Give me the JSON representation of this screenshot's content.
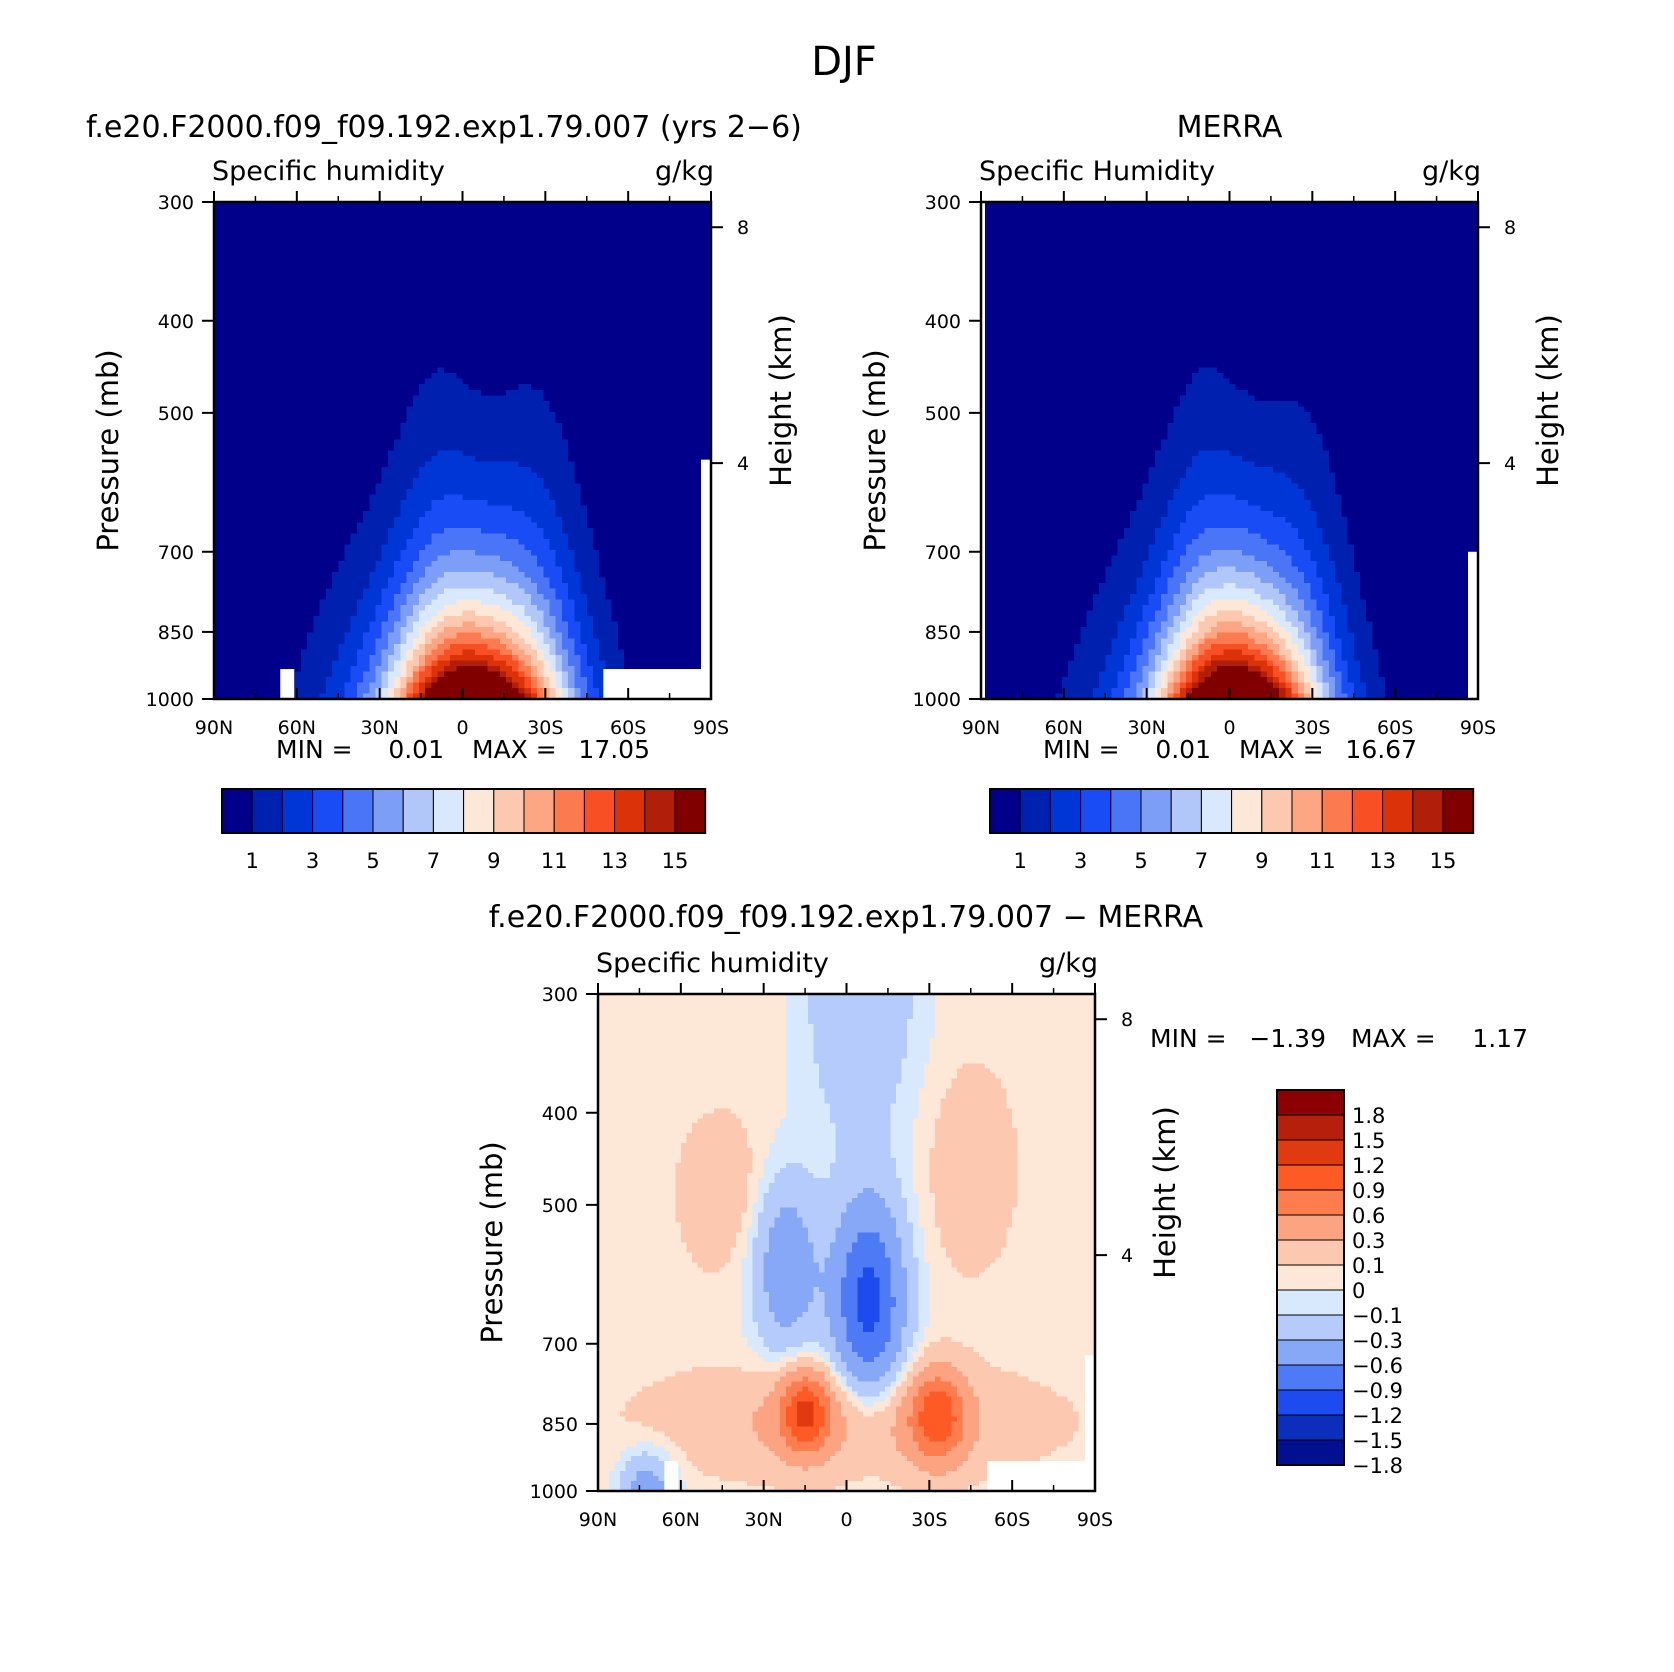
{
  "figure_title": "DJF",
  "panels": [
    {
      "model_title": "f.e20.F2000.f09_f09.192.exp1.79.007 (yrs 2−6)",
      "variable": "Specific humidity",
      "units": "g/kg",
      "ylabel": "Pressure (mb)",
      "y2label": "Height (km)",
      "min_label": "MIN =",
      "min_value": "0.01",
      "max_label": "MAX =",
      "max_value": "17.05"
    },
    {
      "model_title": "MERRA",
      "variable": "Specific Humidity",
      "units": "g/kg",
      "ylabel": "Pressure (mb)",
      "y2label": "Height (km)",
      "min_label": "MIN =",
      "min_value": "0.01",
      "max_label": "MAX =",
      "max_value": "16.67"
    },
    {
      "model_title": "f.e20.F2000.f09_f09.192.exp1.79.007 − MERRA",
      "variable": "Specific humidity",
      "units": "g/kg",
      "ylabel": "Pressure (mb)",
      "y2label": "Height (km)",
      "min_label": "MIN =",
      "min_value": "−1.39",
      "max_label": "MAX =",
      "max_value": "1.17"
    }
  ],
  "chart_data": [
    {
      "type": "heatmap",
      "title": "f.e20.F2000.f09_f09.192.exp1.79.007 (yrs 2−6)",
      "subtitle": "Specific humidity",
      "units": "g/kg",
      "xlabel": "",
      "ylabel": "Pressure (mb)",
      "y2label": "Height (km)",
      "x_ticks": [
        "90N",
        "60N",
        "30N",
        "0",
        "30S",
        "60S",
        "90S"
      ],
      "y_ticks": [
        300,
        400,
        500,
        700,
        850,
        1000
      ],
      "y2_ticks": [
        8,
        4
      ],
      "colorbar_levels": [
        1,
        2,
        3,
        4,
        5,
        6,
        7,
        8,
        9,
        10,
        11,
        12,
        13,
        14,
        15
      ],
      "colorbar_labels": [
        "1",
        "3",
        "5",
        "7",
        "9",
        "11",
        "13",
        "15"
      ],
      "colors": [
        "#00008b",
        "#0020b0",
        "#0035d6",
        "#1a4cf5",
        "#4a75f7",
        "#7d9ef7",
        "#b1c6f9",
        "#d9e8fd",
        "#fde8d8",
        "#fcc8b0",
        "#fca683",
        "#fb7a4f",
        "#f84f25",
        "#dc3209",
        "#b11f0a",
        "#800000"
      ],
      "min": 0.01,
      "max": 17.05
    },
    {
      "type": "heatmap",
      "title": "MERRA",
      "subtitle": "Specific Humidity",
      "units": "g/kg",
      "xlabel": "",
      "ylabel": "Pressure (mb)",
      "y2label": "Height (km)",
      "x_ticks": [
        "90N",
        "60N",
        "30N",
        "0",
        "30S",
        "60S",
        "90S"
      ],
      "y_ticks": [
        300,
        400,
        500,
        700,
        850,
        1000
      ],
      "y2_ticks": [
        8,
        4
      ],
      "colorbar_levels": [
        1,
        2,
        3,
        4,
        5,
        6,
        7,
        8,
        9,
        10,
        11,
        12,
        13,
        14,
        15
      ],
      "colorbar_labels": [
        "1",
        "3",
        "5",
        "7",
        "9",
        "11",
        "13",
        "15"
      ],
      "min": 0.01,
      "max": 16.67
    },
    {
      "type": "heatmap",
      "title": "f.e20.F2000.f09_f09.192.exp1.79.007 − MERRA",
      "subtitle": "Specific humidity",
      "units": "g/kg",
      "xlabel": "",
      "ylabel": "Pressure (mb)",
      "y2label": "Height (km)",
      "x_ticks": [
        "90N",
        "60N",
        "30N",
        "0",
        "30S",
        "60S",
        "90S"
      ],
      "y_ticks": [
        300,
        400,
        500,
        700,
        850,
        1000
      ],
      "y2_ticks": [
        8,
        4
      ],
      "colorbar_labels": [
        "1.8",
        "1.5",
        "1.2",
        "0.9",
        "0.6",
        "0.3",
        "0.1",
        "0",
        "−0.1",
        "−0.3",
        "−0.6",
        "−0.9",
        "−1.2",
        "−1.5",
        "−1.8"
      ],
      "colors": [
        "#8b0000",
        "#b51f0b",
        "#e23a10",
        "#fd5a26",
        "#fd7d4f",
        "#fca482",
        "#fcc9b0",
        "#fde7d6",
        "#d9e9fd",
        "#b4cbfb",
        "#86a8f7",
        "#4f7af5",
        "#1e4bf0",
        "#0b2fbb",
        "#020f8f"
      ],
      "min": -1.39,
      "max": 1.17
    }
  ]
}
